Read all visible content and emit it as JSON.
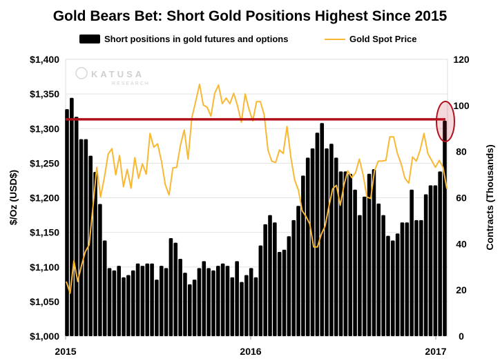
{
  "chart_data": {
    "type": "bar+line",
    "title": "Gold Bears Bet: Short Gold Positions Highest Since 2015",
    "legend_placement": "top",
    "grid": true,
    "watermark": {
      "name": "KATUSA",
      "sub": "RESEARCH"
    },
    "left_axis": {
      "label": "$/Oz (USD$)",
      "range": [
        1000,
        1400
      ],
      "ticks": [
        "$1,000",
        "$1,050",
        "$1,100",
        "$1,150",
        "$1,200",
        "$1,250",
        "$1,300",
        "$1,350",
        "$1,400"
      ]
    },
    "right_axis": {
      "label": "Contracts  (Thousands)",
      "range": [
        0,
        120
      ],
      "ticks": [
        "0",
        "20",
        "40",
        "60",
        "80",
        "100",
        "120"
      ]
    },
    "x_axis": {
      "ticks": [
        "2015",
        "2016",
        "2017"
      ],
      "range": [
        "2015-01",
        "2017-01"
      ]
    },
    "series": [
      {
        "name": "Short positions in gold futures and options",
        "type": "bar",
        "axis": "right",
        "color": "#000000",
        "values": [
          98.4,
          103.3,
          95.1,
          85.4,
          85.4,
          78.2,
          71.2,
          57.3,
          41.5,
          29.5,
          28.5,
          30.5,
          25.5,
          26.5,
          28.5,
          31.5,
          30.5,
          31.5,
          31.5,
          24.5,
          30.5,
          29.5,
          42.5,
          40.5,
          33.5,
          27.5,
          22.5,
          24.5,
          29.5,
          32.5,
          29.5,
          28.5,
          30.5,
          31.5,
          30.5,
          25.5,
          32.5,
          23.5,
          26.5,
          29.5,
          25.5,
          39.3,
          48.5,
          52.5,
          49.3,
          36.5,
          37.5,
          43.3,
          50.3,
          56.5,
          69.6,
          77.4,
          81.4,
          88.2,
          92.4,
          81.4,
          83.4,
          77.4,
          71.4,
          71.4,
          70.4,
          63.5,
          52.5,
          60.5,
          70.4,
          72.4,
          57.5,
          52.5,
          43.5,
          41.5,
          44.5,
          49.3,
          49.3,
          63.5,
          50.3,
          50.3,
          61.5,
          65.4,
          65.4,
          71.4,
          93.4
        ]
      },
      {
        "name": "Gold Spot Price",
        "type": "line",
        "axis": "left",
        "color": "#F9B732",
        "values": [
          1079,
          1062,
          1109,
          1079,
          1102,
          1122,
          1132,
          1187,
          1244,
          1201,
          1229,
          1263,
          1271,
          1233,
          1261,
          1216,
          1241,
          1214,
          1258,
          1228,
          1249,
          1234,
          1293,
          1273,
          1278,
          1253,
          1219,
          1204,
          1243,
          1244,
          1276,
          1298,
          1256,
          1316,
          1339,
          1364,
          1334,
          1331,
          1318,
          1351,
          1363,
          1336,
          1344,
          1336,
          1351,
          1333,
          1309,
          1350,
          1328,
          1311,
          1339,
          1339,
          1320,
          1269,
          1253,
          1251,
          1269,
          1264,
          1303,
          1259,
          1226,
          1211,
          1181,
          1173,
          1162,
          1129,
          1129,
          1147,
          1159,
          1187,
          1213,
          1218,
          1189,
          1219,
          1239,
          1229,
          1236,
          1256,
          1233,
          1201,
          1199,
          1239,
          1253,
          1253,
          1254,
          1288,
          1288,
          1264,
          1249,
          1228,
          1221,
          1259,
          1253,
          1269,
          1293,
          1264,
          1254,
          1244,
          1254,
          1244,
          1213
        ]
      }
    ],
    "annotations": {
      "threshold_line": {
        "value": 94,
        "axis": "right",
        "color": "#B0101A"
      },
      "highlight_circle": {
        "target": "last bar",
        "color": "#B0101A"
      }
    }
  }
}
